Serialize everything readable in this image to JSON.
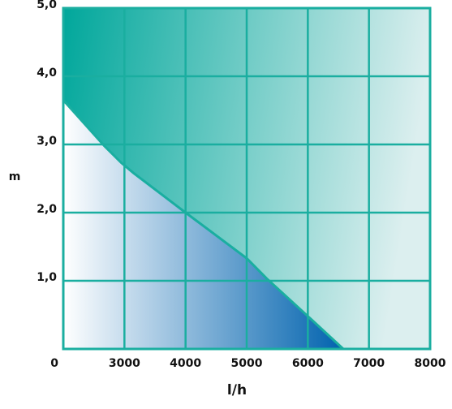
{
  "chart_data": {
    "type": "line",
    "x_label": "l/h",
    "y_label": "m",
    "x": [
      2000,
      2680,
      2950,
      3150,
      4000,
      5000,
      5330,
      6000,
      6580
    ],
    "series": [
      {
        "color": "#1aaea0",
        "values": [
          3.65,
          2.97,
          2.73,
          2.58,
          2.0,
          1.33,
          1.03,
          0.48,
          0
        ]
      }
    ],
    "xlim": [
      2000,
      8000
    ],
    "xticks": [
      3000,
      4000,
      5000,
      6000,
      7000,
      8000
    ],
    "ylim": [
      0,
      5
    ],
    "yticks": [
      0,
      {
        "value": 1,
        "label": "1,0"
      },
      {
        "value": 2,
        "label": "2,0"
      },
      {
        "value": 3,
        "label": "3,0"
      },
      {
        "value": 4,
        "label": "4,0"
      },
      {
        "value": 5,
        "label": "5,0"
      }
    ],
    "grid": true
  }
}
